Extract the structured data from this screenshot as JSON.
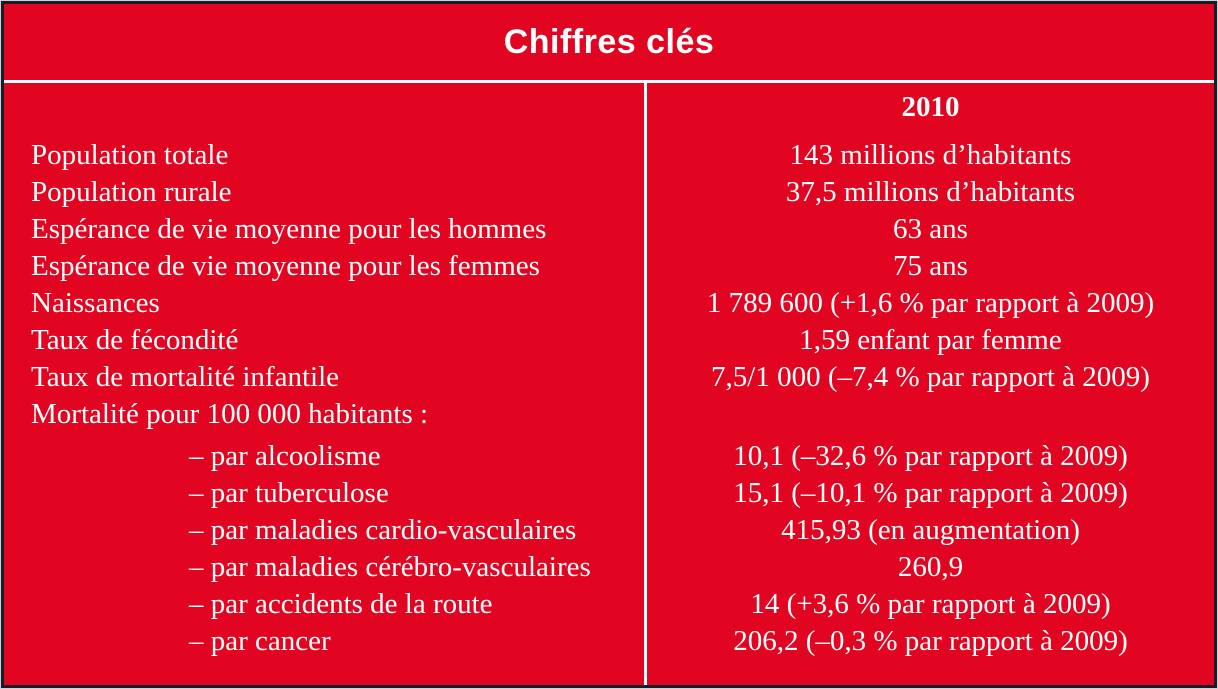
{
  "header": {
    "title": "Chiffres clés"
  },
  "table": {
    "year_header": "2010",
    "rows": [
      {
        "label": "Population totale",
        "value": "143 millions d’habitants",
        "indent": false
      },
      {
        "label": "Population rurale",
        "value": "37,5 millions d’habitants",
        "indent": false
      },
      {
        "label": "Espérance de vie moyenne pour les hommes",
        "value": "63 ans",
        "indent": false
      },
      {
        "label": "Espérance de vie moyenne pour les femmes",
        "value": "75 ans",
        "indent": false
      },
      {
        "label": "Naissances",
        "value": "1 789 600 (+1,6 % par rapport à 2009)",
        "indent": false
      },
      {
        "label": "Taux de fécondité",
        "value": "1,59 enfant par femme",
        "indent": false
      },
      {
        "label": "Taux de mortalité infantile",
        "value": "7,5/1 000 (–7,4 % par rapport à 2009)",
        "indent": false
      },
      {
        "label": "Mortalité pour 100 000 habitants :",
        "value": "",
        "indent": false
      },
      {
        "label": "– par alcoolisme",
        "value": "10,1 (–32,6 % par rapport à 2009)",
        "indent": true
      },
      {
        "label": "– par tuberculose",
        "value": "15,1 (–10,1 % par rapport à 2009)",
        "indent": true
      },
      {
        "label": "– par maladies cardio-vasculaires",
        "value": "415,93 (en augmentation)",
        "indent": true
      },
      {
        "label": "– par maladies cérébro-vasculaires",
        "value": "260,9",
        "indent": true
      },
      {
        "label": "– par accidents de la route",
        "value": "14 (+3,6 % par rapport à 2009)",
        "indent": true
      },
      {
        "label": "– par cancer",
        "value": "206,2 (–0,3 % par rapport à 2009)",
        "indent": true
      }
    ]
  },
  "colors": {
    "red": "#e20521",
    "border_dark": "#1b1b26",
    "edge_light": "#ccd1da",
    "text": "#ffffff"
  }
}
